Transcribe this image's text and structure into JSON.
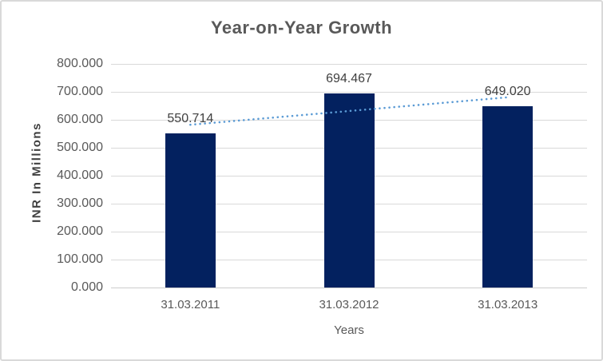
{
  "chart_data": {
    "type": "bar",
    "title": "Year-on-Year Growth",
    "categories": [
      "31.03.2011",
      "31.03.2012",
      "31.03.2013"
    ],
    "values": [
      550.714,
      694.467,
      649.02
    ],
    "value_labels": [
      "550.714",
      "694.467",
      "649.020"
    ],
    "xlabel": "Years",
    "ylabel": "INR In Millions",
    "ylim": [
      0,
      800
    ],
    "y_tick_step": 100,
    "y_tick_labels": [
      "0.000",
      "100.000",
      "200.000",
      "300.000",
      "400.000",
      "500.000",
      "600.000",
      "700.000",
      "800.000"
    ],
    "grid": true,
    "legend": "none",
    "trendline": {
      "type": "linear",
      "style": "dotted"
    },
    "colors": {
      "bar": "#03215f",
      "trendline": "#5b9bd5",
      "gridline": "#d9d9d9",
      "axis_line": "#cccccc",
      "title": "#595959",
      "axis_labels": "#595959",
      "data_labels": "#404040",
      "frame_border": "#d9d9d9"
    }
  }
}
